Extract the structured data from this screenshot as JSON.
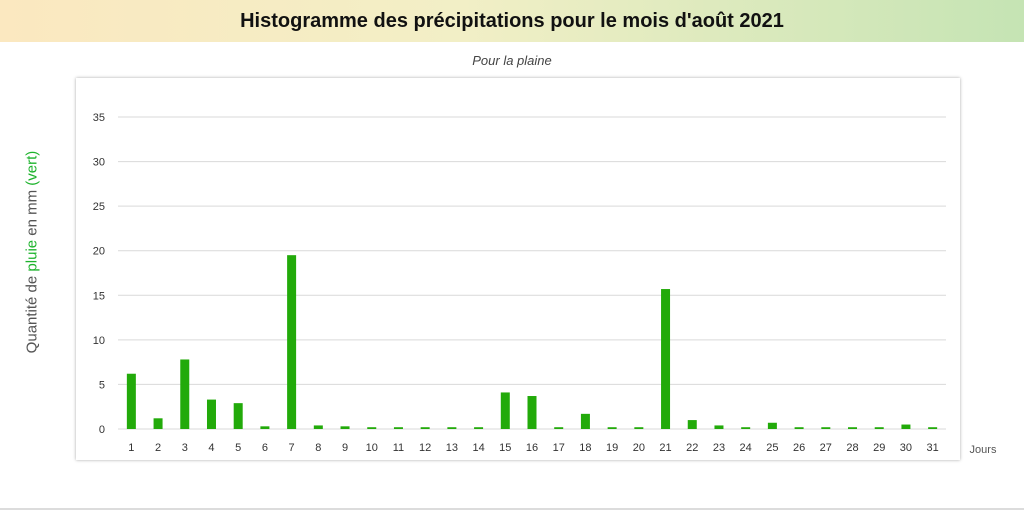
{
  "title": "Histogramme des précipitations pour le mois d'août 2021",
  "subtitle": "Pour la plaine",
  "ylabel_parts": {
    "prefix": "Quantité de ",
    "green1": "pluie",
    "middle": " en mm ",
    "green2": "(vert)"
  },
  "colors": {
    "bar": "#22aa0a",
    "grid": "#d9d9d9",
    "axis_text": "#333333",
    "accent": "#1db32c"
  },
  "chart_data": {
    "type": "bar",
    "title": "Histogramme des précipitations pour le mois d'août 2021",
    "subtitle": "Pour la plaine",
    "xlabel": "Jours",
    "ylabel": "Quantité de pluie en mm (vert)",
    "categories": [
      "1",
      "2",
      "3",
      "4",
      "5",
      "6",
      "7",
      "8",
      "9",
      "10",
      "11",
      "12",
      "13",
      "14",
      "15",
      "16",
      "17",
      "18",
      "19",
      "20",
      "21",
      "22",
      "23",
      "24",
      "25",
      "26",
      "27",
      "28",
      "29",
      "30",
      "31"
    ],
    "values": [
      6.2,
      1.2,
      7.8,
      3.3,
      2.9,
      0.3,
      19.5,
      0.4,
      0.3,
      0.2,
      0.2,
      0.2,
      0.2,
      0.2,
      4.1,
      3.7,
      0.2,
      1.7,
      0.2,
      0.2,
      15.7,
      1.0,
      0.4,
      0.2,
      0.7,
      0.2,
      0.2,
      0.2,
      0.2,
      0.5,
      0.2
    ],
    "yticks": [
      0,
      5,
      10,
      15,
      20,
      25,
      30,
      35
    ],
    "ylim": [
      0,
      35
    ],
    "grid": true,
    "legend": "none"
  }
}
